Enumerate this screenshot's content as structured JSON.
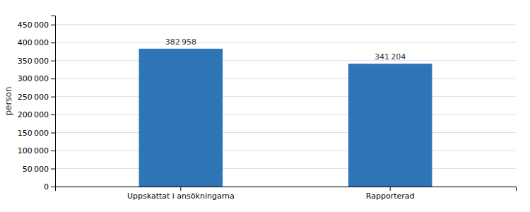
{
  "chart_data": {
    "type": "bar",
    "categories": [
      "Uppskattat i ansökningarna",
      "Rapporterad"
    ],
    "values": [
      382958,
      341204
    ],
    "value_labels": [
      "382 958",
      "341 204"
    ],
    "data_labels": true,
    "color": "#2E75B6",
    "y_label": "person",
    "ylim": [
      0,
      475000
    ],
    "yticks": [
      0,
      {
        "value": 50000,
        "label": "50 000"
      },
      {
        "value": 100000,
        "label": "100 000"
      },
      {
        "value": 150000,
        "label": "150 000"
      },
      {
        "value": 200000,
        "label": "200 000"
      },
      {
        "value": 250000,
        "label": "250 000"
      },
      {
        "value": 300000,
        "label": "300 000"
      },
      {
        "value": 350000,
        "label": "350 000"
      },
      {
        "value": 400000,
        "label": "400 000"
      },
      {
        "value": 450000,
        "label": "450 000"
      }
    ],
    "grid": true
  }
}
